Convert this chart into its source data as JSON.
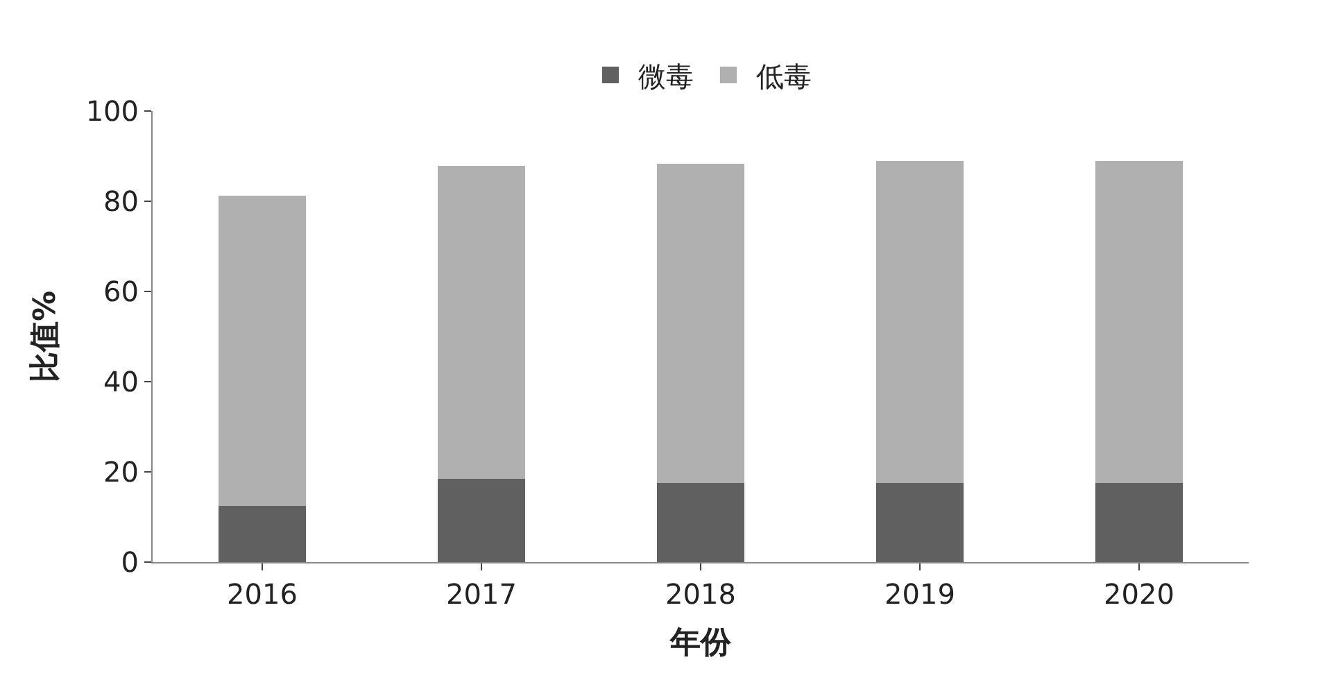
{
  "chart_data": {
    "type": "bar",
    "stacked": true,
    "xlabel": "年份",
    "ylabel": "比值%",
    "categories": [
      "2016",
      "2017",
      "2018",
      "2019",
      "2020"
    ],
    "series": [
      {
        "name": "微毒",
        "color": "#606060",
        "values": [
          12.4,
          18.4,
          17.5,
          17.5,
          17.5
        ]
      },
      {
        "name": "低毒",
        "color": "#b0b0b0",
        "values": [
          68.9,
          69.5,
          70.8,
          71.4,
          71.4
        ]
      }
    ],
    "ylim": [
      0,
      100
    ],
    "yticks": [
      0,
      20,
      40,
      60,
      80,
      100
    ],
    "legend": "top"
  }
}
